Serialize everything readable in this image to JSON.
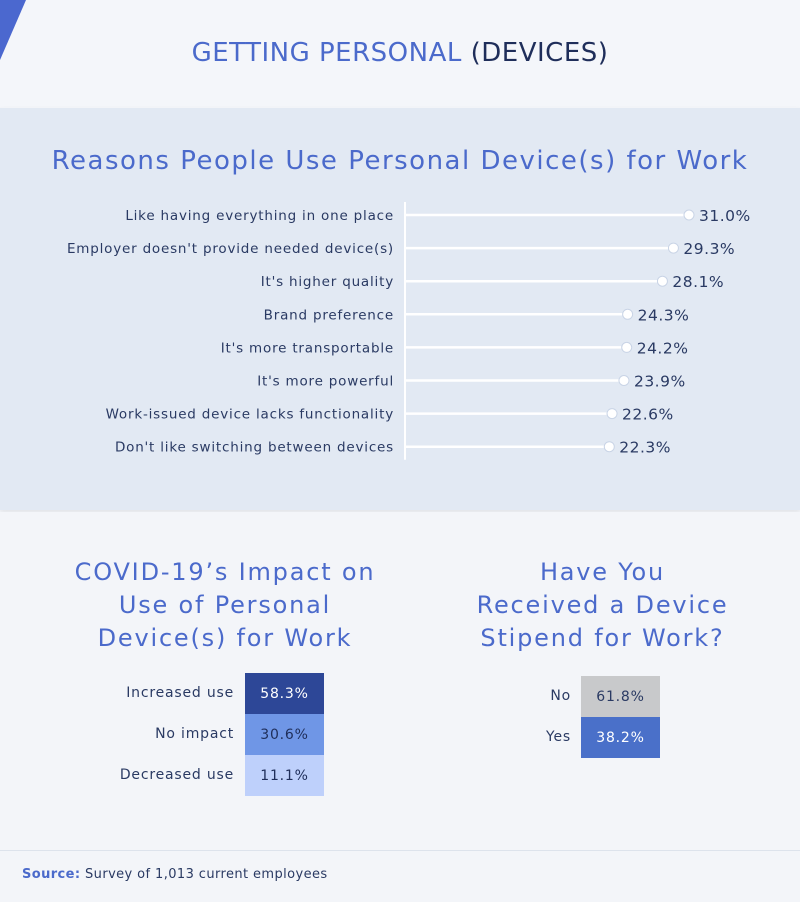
{
  "page": {
    "title_part1": "GETTING PERSONAL ",
    "title_part2": "(DEVICES)",
    "source_label": "Source:",
    "source_text": "Survey of 1,013 current employees"
  },
  "chart_data": [
    {
      "type": "bar",
      "title": "Reasons People Use Personal Device(s) for Work",
      "orientation": "horizontal-lollipop",
      "categories": [
        "Like having everything in one place",
        "Employer doesn't provide needed device(s)",
        "It's higher quality",
        "Brand preference",
        "It's more transportable",
        "It's more powerful",
        "Work-issued device lacks functionality",
        "Don't like switching between devices"
      ],
      "values": [
        31.0,
        29.3,
        28.1,
        24.3,
        24.2,
        23.9,
        22.6,
        22.3
      ],
      "value_labels": [
        "31.0%",
        "29.3%",
        "28.1%",
        "24.3%",
        "24.2%",
        "23.9%",
        "22.6%",
        "22.3%"
      ],
      "xlim": [
        0,
        31.0
      ]
    },
    {
      "type": "table",
      "title_lines": [
        "COVID-19’s Impact on",
        "Use of Personal",
        "Device(s) for Work"
      ],
      "rows": [
        {
          "label": "Increased use",
          "value": "58.3%",
          "color": "#2d4797",
          "text_color": "#ffffff"
        },
        {
          "label": "No impact",
          "value": "30.6%",
          "color": "#6f96e6",
          "text_color": "#1f2e5a"
        },
        {
          "label": "Decreased use",
          "value": "11.1%",
          "color": "#bed0fb",
          "text_color": "#1f2e5a"
        }
      ]
    },
    {
      "type": "table",
      "title_lines": [
        "Have You",
        "Received a Device",
        "Stipend for Work?"
      ],
      "rows": [
        {
          "label": "No",
          "value": "61.8%",
          "color": "#c8c9cb",
          "text_color": "#2a3a63"
        },
        {
          "label": "Yes",
          "value": "38.2%",
          "color": "#4a70c9",
          "text_color": "#ffffff"
        }
      ]
    }
  ]
}
